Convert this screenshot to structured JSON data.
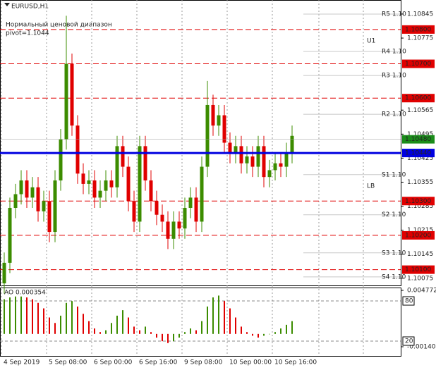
{
  "chart_data": [
    {
      "type": "candlestick",
      "title": "EURUSD,H1",
      "subtitle": "Нормальный ценовой диапазон",
      "annotations": [
        "pivot=1.1044",
        "U1",
        "LB"
      ],
      "up_color": "#3c8c00",
      "down_color": "#e00000",
      "open": [
        1.1006,
        1.1012,
        1.1028,
        1.1032,
        1.1036,
        1.1031,
        1.1034,
        1.1027,
        1.103,
        1.1021,
        1.1036,
        1.1048,
        1.107,
        1.1052,
        1.1038,
        1.1035,
        1.1036,
        1.1031,
        1.1033,
        1.1036,
        1.1034,
        1.1046,
        1.104,
        1.103,
        1.1024,
        1.1046,
        1.1036,
        1.103,
        1.1026,
        1.1024,
        1.1019,
        1.1024,
        1.1022,
        1.1028,
        1.1031,
        1.1024,
        1.104,
        1.1058,
        1.1052,
        1.1055,
        1.1047,
        1.1044,
        1.1046,
        1.1041,
        1.1043,
        1.104,
        1.1046,
        1.1037,
        1.1039,
        1.1041,
        1.104,
        1.1044
      ],
      "high": [
        1.1015,
        1.1031,
        1.1035,
        1.1039,
        1.1039,
        1.1037,
        1.1037,
        1.1033,
        1.1033,
        1.1039,
        1.1051,
        1.1084,
        1.1073,
        1.1055,
        1.1041,
        1.1039,
        1.1039,
        1.1036,
        1.1039,
        1.1039,
        1.1049,
        1.1049,
        1.1043,
        1.1033,
        1.1049,
        1.1049,
        1.1039,
        1.1033,
        1.1029,
        1.1027,
        1.1027,
        1.1027,
        1.1031,
        1.1034,
        1.1034,
        1.1043,
        1.1065,
        1.1061,
        1.1058,
        1.1058,
        1.105,
        1.1049,
        1.1049,
        1.1046,
        1.1046,
        1.1049,
        1.1049,
        1.1042,
        1.1044,
        1.1044,
        1.1047,
        1.1052
      ],
      "low": [
        1.1003,
        1.1009,
        1.1025,
        1.1029,
        1.1028,
        1.1028,
        1.1024,
        1.1024,
        1.1018,
        1.1018,
        1.1033,
        1.1045,
        1.1049,
        1.1035,
        1.1032,
        1.1032,
        1.1028,
        1.1028,
        1.103,
        1.1031,
        1.1031,
        1.1037,
        1.1027,
        1.1021,
        1.1021,
        1.1033,
        1.1027,
        1.1023,
        1.1021,
        1.1016,
        1.1016,
        1.1019,
        1.1019,
        1.1025,
        1.1021,
        1.1021,
        1.1037,
        1.1049,
        1.1049,
        1.1044,
        1.1041,
        1.1041,
        1.1038,
        1.1038,
        1.1037,
        1.1037,
        1.1034,
        1.1034,
        1.1036,
        1.1037,
        1.1037,
        1.1041
      ],
      "close": [
        1.1012,
        1.1028,
        1.1032,
        1.1036,
        1.1031,
        1.1034,
        1.1027,
        1.103,
        1.1021,
        1.1036,
        1.1048,
        1.107,
        1.1052,
        1.1038,
        1.1035,
        1.1036,
        1.1031,
        1.1033,
        1.1036,
        1.1034,
        1.1046,
        1.104,
        1.103,
        1.1024,
        1.1046,
        1.1036,
        1.103,
        1.1026,
        1.1024,
        1.1019,
        1.1024,
        1.1022,
        1.1028,
        1.1031,
        1.1024,
        1.104,
        1.1058,
        1.1052,
        1.1055,
        1.1047,
        1.1044,
        1.1046,
        1.1041,
        1.1043,
        1.104,
        1.1046,
        1.1037,
        1.1039,
        1.1041,
        1.104,
        1.1044,
        1.1049
      ],
      "xlim": [
        -0.75,
        70.25
      ],
      "xticks": [
        {
          "value": -0.5,
          "label": "4 Sep 2019"
        },
        {
          "value": 7.5,
          "label": "5 Sep 08:00"
        },
        {
          "value": 15.5,
          "label": "6 Sep 00:00"
        },
        {
          "value": 23.5,
          "label": "6 Sep 16:00"
        },
        {
          "value": 31.5,
          "label": "9 Sep 08:00"
        },
        {
          "value": 39.5,
          "label": "10 Sep 00:00"
        },
        {
          "value": 47.5,
          "label": "10 Sep 16:00"
        }
      ],
      "ylim": [
        1.10054,
        1.10886
      ],
      "yticks": [
        1.10845,
        1.10775,
        1.10565,
        1.10495,
        1.10425,
        1.10355,
        1.10285,
        1.10215,
        1.10145,
        1.10075
      ],
      "levels": [
        {
          "value": 1.108,
          "label": "1.10800"
        },
        {
          "value": 1.107,
          "label": "1.10700"
        },
        {
          "value": 1.106,
          "label": "1.10600"
        },
        {
          "value": 1.103,
          "label": "1.10300"
        },
        {
          "value": 1.102,
          "label": "1.10200"
        },
        {
          "value": 1.101,
          "label": "1.10100"
        }
      ],
      "level_color": "#e00000",
      "pivot": {
        "value": 1.1044,
        "label": "1.10440"
      },
      "pivot_color": "#0000e0",
      "current": {
        "value": 1.1048,
        "label": "1.10480"
      },
      "current_color": "#1a8c1a",
      "pivot_levels": [
        {
          "value": 1.10845,
          "label": "R5 1.10"
        },
        {
          "value": 1.10736,
          "label": "R4 1.10"
        },
        {
          "value": 1.10666,
          "label": "R3 1.10"
        },
        {
          "value": 1.10553,
          "label": "R2 1.10"
        },
        {
          "value": 1.10377,
          "label": "S1 1.10"
        },
        {
          "value": 1.1026,
          "label": "S2 1.10"
        },
        {
          "value": 1.10149,
          "label": "S3 1.10"
        },
        {
          "value": 1.10079,
          "label": "S4 1.10"
        }
      ]
    },
    {
      "type": "bar",
      "title": "AO 0.000354",
      "up_color": "#3c8c00",
      "down_color": "#e00000",
      "values": [
        0.0038,
        0.004,
        0.0041,
        0.0041,
        0.004,
        0.0038,
        0.0034,
        0.0028,
        0.0018,
        0.0012,
        0.002,
        0.0034,
        0.0036,
        0.003,
        0.0022,
        0.0014,
        0.0006,
        0.0002,
        0.0004,
        0.0012,
        0.002,
        0.0026,
        0.0018,
        0.0008,
        0.0004,
        0.0008,
        0.0002,
        -0.0004,
        -0.0008,
        -0.001,
        -0.0008,
        -0.0004,
        0.0002,
        0.0006,
        0.0004,
        0.0014,
        0.003,
        0.004,
        0.0042,
        0.0036,
        0.0028,
        0.0018,
        0.0008,
        0.0002,
        -0.0002,
        -0.0004,
        -0.0002,
        0.0,
        0.0002,
        0.0006,
        0.001,
        0.0014
      ],
      "xlim": [
        -0.75,
        70.25
      ],
      "ylim": [
        -0.002408,
        0.005081
      ],
      "yticks": [
        0.004772,
        -0.001404
      ],
      "y2lim": [
        0,
        100
      ],
      "levels": [
        80,
        20
      ]
    }
  ]
}
